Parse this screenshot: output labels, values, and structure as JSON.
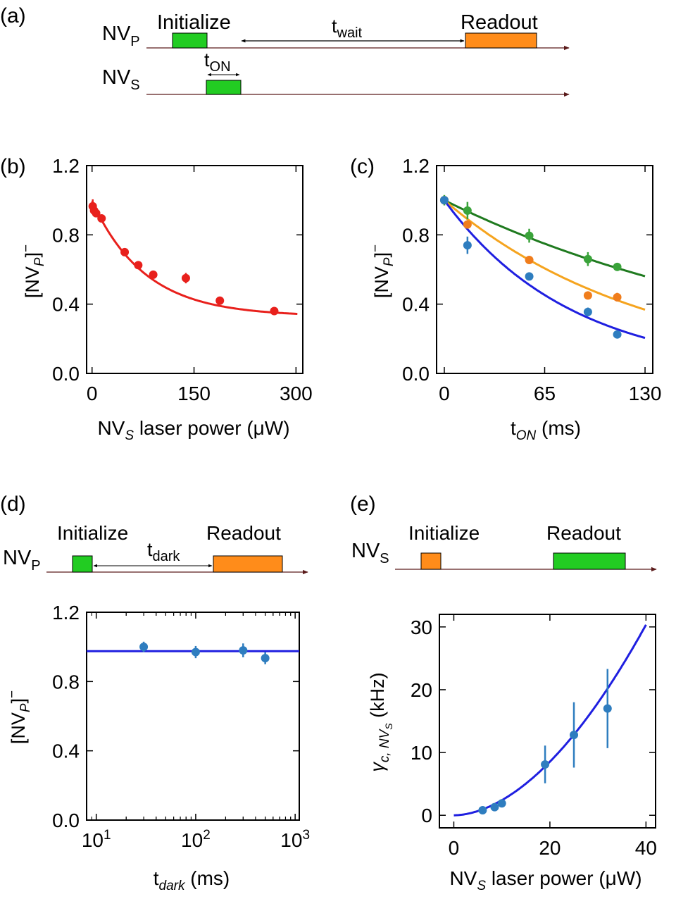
{
  "panel_labels": {
    "a": "(a)",
    "b": "(b)",
    "c": "(c)",
    "d": "(d)",
    "e": "(e)"
  },
  "sequences": {
    "a": {
      "rows": [
        {
          "channel": "NV",
          "sub": "P"
        },
        {
          "channel": "NV",
          "sub": "S"
        }
      ],
      "initialize": "Initialize",
      "readout": "Readout",
      "wait_t": "t",
      "wait_sub": "wait",
      "on_t": "t",
      "on_sub": "ON"
    },
    "d": {
      "channel": "NV",
      "sub": "P",
      "initialize": "Initialize",
      "readout": "Readout",
      "dark_t": "t",
      "dark_sub": "dark"
    },
    "e": {
      "channel": "NV",
      "sub": "S",
      "initialize": "Initialize",
      "readout": "Readout"
    }
  },
  "colors": {
    "green": "#22cc22",
    "orange": "#ff8c1a",
    "red": "#e8201c",
    "blue": "#1f1fe0",
    "dot_blue": "#2e7dbf",
    "fit_green": "#1f7a1f",
    "fit_orange": "#f5a41f",
    "pt_orange": "#f07d1c",
    "pt_green": "#3aa33a",
    "arrow": "#5a1a1a"
  },
  "chart_data": [
    {
      "id": "b",
      "type": "scatter",
      "ylabel": {
        "main": "[NV",
        "sub": "P",
        "end": "]",
        "sup": "−"
      },
      "xlabel": {
        "main": "NV",
        "sub": "S",
        "end": " laser power (μW)"
      },
      "xlim": [
        -8,
        310
      ],
      "ylim": [
        0,
        1.2
      ],
      "xticks": [
        "0",
        "150",
        "300"
      ],
      "xtick_values": [
        0,
        150,
        300
      ],
      "yticks": [
        "0.0",
        "0.4",
        "0.8",
        "1.2"
      ],
      "ytick_values": [
        0,
        0.4,
        0.8,
        1.2
      ],
      "series": [
        {
          "name": "data",
          "color": "#e8201c",
          "x": [
            1,
            3,
            6,
            14,
            48,
            68,
            90,
            138,
            188,
            268
          ],
          "y": [
            0.965,
            0.94,
            0.925,
            0.895,
            0.7,
            0.625,
            0.57,
            0.55,
            0.42,
            0.36
          ],
          "err": [
            0.04,
            0.02,
            0.02,
            0.02,
            0.015,
            0.02,
            0.015,
            0.03,
            0.015,
            0.01
          ]
        }
      ],
      "fits": [
        {
          "name": "fit",
          "color": "#e8201c",
          "model": "exp",
          "a": 0.665,
          "tau": 78,
          "c": 0.33,
          "x0": 0,
          "x1": 302
        }
      ]
    },
    {
      "id": "c",
      "type": "scatter",
      "ylabel": {
        "main": "[NV",
        "sub": "P",
        "end": "]",
        "sup": "−"
      },
      "xlabel": {
        "main": "t",
        "sub": "ON",
        "end": " (ms)"
      },
      "xlim": [
        -5,
        135
      ],
      "ylim": [
        0,
        1.2
      ],
      "xticks": [
        "0",
        "65",
        "130"
      ],
      "xtick_values": [
        0,
        65,
        130
      ],
      "yticks": [
        "0.0",
        "0.4",
        "0.8",
        "1.2"
      ],
      "ytick_values": [
        0,
        0.4,
        0.8,
        1.2
      ],
      "series": [
        {
          "name": "green",
          "color": "#3aa33a",
          "x": [
            0,
            15,
            55,
            93,
            112
          ],
          "y": [
            1.0,
            0.94,
            0.795,
            0.66,
            0.615
          ],
          "err": [
            0.03,
            0.05,
            0.04,
            0.04,
            0.02
          ]
        },
        {
          "name": "orange",
          "color": "#f07d1c",
          "x": [
            0,
            15,
            55,
            93,
            112
          ],
          "y": [
            1.0,
            0.86,
            0.655,
            0.45,
            0.44
          ],
          "err": [
            0.02,
            0.02,
            0.02,
            0.02,
            0.025
          ]
        },
        {
          "name": "blue",
          "color": "#2e7dbf",
          "x": [
            0,
            15,
            55,
            93,
            112
          ],
          "y": [
            1.0,
            0.74,
            0.56,
            0.355,
            0.225
          ],
          "err": [
            0.02,
            0.05,
            0.01,
            0.025,
            0.01
          ]
        }
      ],
      "fits": [
        {
          "name": "green-fit",
          "color": "#1f7a1f",
          "model": "exp",
          "a": 1.0,
          "tau": 225,
          "c": 0,
          "x0": 0,
          "x1": 130
        },
        {
          "name": "orange-fit",
          "color": "#f5a41f",
          "model": "exp",
          "a": 1.0,
          "tau": 130,
          "c": 0,
          "x0": 0,
          "x1": 130
        },
        {
          "name": "blue-fit",
          "color": "#1f1fe0",
          "model": "exp",
          "a": 1.0,
          "tau": 82,
          "c": 0,
          "x0": 0,
          "x1": 130
        }
      ]
    },
    {
      "id": "d",
      "type": "scatter",
      "xscale": "log",
      "ylabel": {
        "main": "[NV",
        "sub": "P",
        "end": "]",
        "sup": "−"
      },
      "xlabel": {
        "main": "t",
        "sub": "dark",
        "end": " (ms)"
      },
      "xlim": [
        8,
        1100
      ],
      "ylim": [
        0,
        1.2
      ],
      "xticks": [
        {
          "base": "10",
          "exp": "1"
        },
        {
          "base": "10",
          "exp": "2"
        },
        {
          "base": "10",
          "exp": "3"
        }
      ],
      "xtick_values": [
        10,
        100,
        1000
      ],
      "yticks": [
        "0.0",
        "0.4",
        "0.8",
        "1.2"
      ],
      "ytick_values": [
        0,
        0.4,
        0.8,
        1.2
      ],
      "series": [
        {
          "name": "data",
          "color": "#2e7dbf",
          "x": [
            30,
            100,
            300,
            500
          ],
          "y": [
            1.0,
            0.97,
            0.98,
            0.935
          ],
          "err": [
            0.03,
            0.035,
            0.04,
            0.035
          ]
        }
      ],
      "fits": [
        {
          "name": "mean-line",
          "color": "#1f1fe0",
          "model": "const",
          "c": 0.975,
          "x0": 8,
          "x1": 1100
        }
      ]
    },
    {
      "id": "e",
      "type": "scatter",
      "ylabel": {
        "main": "γ",
        "sub": "c, NV",
        "subsub": "S",
        "end": " (kHz)"
      },
      "xlabel": {
        "main": "NV",
        "sub": "S",
        "end": " laser power (μW)"
      },
      "xlim": [
        -3,
        42
      ],
      "ylim": [
        -2,
        32
      ],
      "xticks": [
        "0",
        "20",
        "40"
      ],
      "xtick_values": [
        0,
        20,
        40
      ],
      "yticks": [
        "0",
        "10",
        "20",
        "30"
      ],
      "ytick_values": [
        0,
        10,
        20,
        30
      ],
      "series": [
        {
          "name": "data",
          "color": "#2e7dbf",
          "x": [
            6,
            8.5,
            10,
            19,
            25,
            32
          ],
          "y": [
            0.8,
            1.3,
            1.9,
            8.1,
            12.8,
            17.0
          ],
          "err": [
            0.3,
            0.3,
            0.4,
            3.0,
            5.2,
            6.3
          ]
        }
      ],
      "fits": [
        {
          "name": "fit",
          "color": "#1f1fe0",
          "model": "power",
          "a": 0.0355,
          "p": 1.83,
          "x0": 0,
          "x1": 40
        }
      ]
    }
  ]
}
